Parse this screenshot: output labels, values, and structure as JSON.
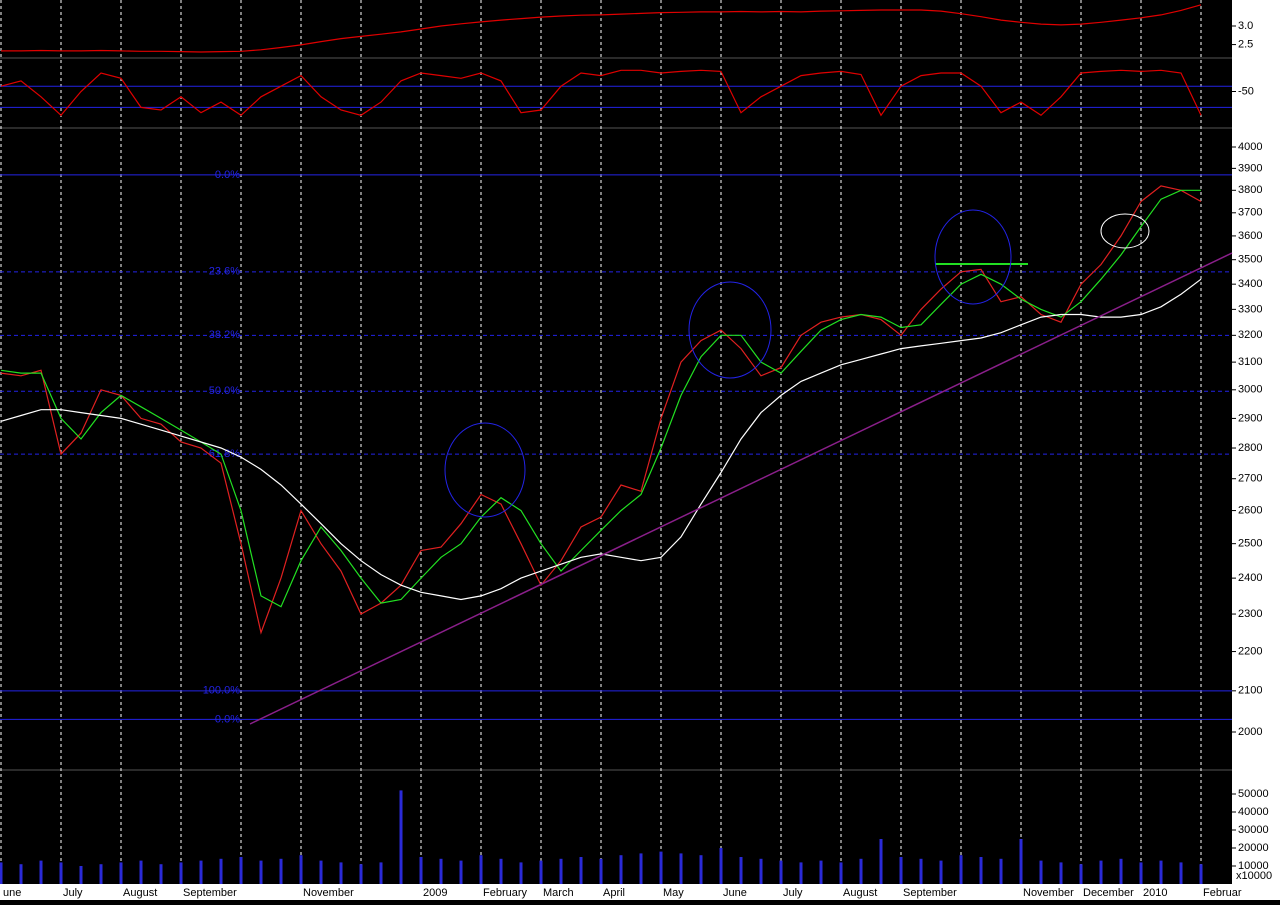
{
  "chart_data": [
    {
      "type": "line",
      "series": [
        {
          "color": "#e00000",
          "values": [
            2.33,
            2.33,
            2.34,
            2.33,
            2.33,
            2.34,
            2.33,
            2.32,
            2.32,
            2.31,
            2.3,
            2.31,
            2.32,
            2.36,
            2.42,
            2.49,
            2.58,
            2.66,
            2.72,
            2.78,
            2.84,
            2.92,
            3.0,
            3.06,
            3.11,
            3.16,
            3.2,
            3.24,
            3.27,
            3.29,
            3.3,
            3.32,
            3.34,
            3.36,
            3.37,
            3.38,
            3.38,
            3.39,
            3.38,
            3.39,
            3.38,
            3.4,
            3.41,
            3.42,
            3.43,
            3.43,
            3.43,
            3.4,
            3.33,
            3.25,
            3.16,
            3.1,
            3.05,
            3.03,
            3.05,
            3.1,
            3.16,
            3.22,
            3.3,
            3.42,
            3.57
          ]
        }
      ],
      "ylim": [
        2.3,
        3.7
      ],
      "yticks": [
        2.5,
        {
          "value": 3,
          "label": "3.0"
        }
      ]
    },
    {
      "type": "line",
      "series": [
        {
          "color": "#e00000",
          "values": [
            -40,
            -30,
            -60,
            -95,
            -50,
            -15,
            -25,
            -80,
            -85,
            -60,
            -90,
            -70,
            -95,
            -60,
            -40,
            -20,
            -60,
            -85,
            -95,
            -70,
            -30,
            -15,
            -20,
            -25,
            -15,
            -30,
            -90,
            -85,
            -40,
            -15,
            -20,
            -10,
            -10,
            -15,
            -12,
            -10,
            -12,
            -90,
            -60,
            -40,
            -20,
            -15,
            -12,
            -18,
            -95,
            -40,
            -20,
            -15,
            -15,
            -40,
            -90,
            -70,
            -95,
            -60,
            -15,
            -12,
            -10,
            -12,
            -10,
            -15,
            -95
          ]
        }
      ],
      "ylim": [
        -100,
        0
      ],
      "yticks": [
        -50
      ],
      "levels": [
        -40,
        -80
      ],
      "level_color": "#2323e6"
    },
    {
      "type": "line",
      "log": true,
      "series": [
        {
          "color": "#e02020",
          "values": [
            3060,
            3050,
            3070,
            2780,
            2850,
            3000,
            2980,
            2900,
            2880,
            2820,
            2800,
            2750,
            2500,
            2250,
            2400,
            2600,
            2500,
            2420,
            2300,
            2330,
            2380,
            2480,
            2490,
            2560,
            2650,
            2620,
            2500,
            2380,
            2450,
            2550,
            2580,
            2680,
            2660,
            2900,
            3100,
            3180,
            3220,
            3150,
            3050,
            3080,
            3200,
            3250,
            3270,
            3280,
            3260,
            3200,
            3300,
            3380,
            3450,
            3460,
            3330,
            3350,
            3280,
            3250,
            3400,
            3480,
            3600,
            3750,
            3820,
            3800,
            3750
          ]
        },
        {
          "color": "#22e022",
          "values": [
            3070,
            3060,
            3060,
            2900,
            2830,
            2920,
            2980,
            2940,
            2900,
            2860,
            2820,
            2780,
            2600,
            2350,
            2320,
            2450,
            2550,
            2480,
            2400,
            2330,
            2340,
            2400,
            2460,
            2500,
            2580,
            2640,
            2600,
            2500,
            2420,
            2480,
            2540,
            2600,
            2650,
            2800,
            2980,
            3120,
            3200,
            3200,
            3100,
            3060,
            3140,
            3220,
            3260,
            3280,
            3270,
            3230,
            3240,
            3320,
            3400,
            3440,
            3400,
            3340,
            3300,
            3270,
            3330,
            3420,
            3520,
            3640,
            3760,
            3800,
            3800
          ]
        },
        {
          "color": "#ffffff",
          "values": [
            2890,
            2910,
            2930,
            2930,
            2920,
            2910,
            2900,
            2880,
            2860,
            2840,
            2820,
            2800,
            2770,
            2730,
            2680,
            2620,
            2560,
            2500,
            2450,
            2410,
            2380,
            2360,
            2350,
            2340,
            2350,
            2370,
            2400,
            2420,
            2440,
            2460,
            2470,
            2460,
            2450,
            2460,
            2520,
            2620,
            2720,
            2830,
            2920,
            2980,
            3030,
            3060,
            3090,
            3110,
            3130,
            3150,
            3160,
            3170,
            3180,
            3190,
            3210,
            3240,
            3270,
            3280,
            3280,
            3270,
            3270,
            3280,
            3310,
            3360,
            3420
          ]
        }
      ],
      "ylim": [
        2000,
        4000
      ],
      "yticks": [
        2000,
        2100,
        2200,
        2300,
        2400,
        2500,
        2600,
        2700,
        2800,
        2900,
        3000,
        3100,
        3200,
        3300,
        3400,
        3500,
        3600,
        3700,
        3800,
        3900,
        4000
      ],
      "fib_color": "#2323e6",
      "fib_levels": [
        {
          "value": 3870,
          "label": "0.0%",
          "style": "solid"
        },
        {
          "value": 3450,
          "label": "23.6%",
          "style": "dashed"
        },
        {
          "value": 3200,
          "label": "38.2%",
          "style": "dashed"
        },
        {
          "value": 2995,
          "label": "50.0%",
          "style": "dashed"
        },
        {
          "value": 2780,
          "label": "61.8%",
          "style": "dashed"
        },
        {
          "value": 2100,
          "label": "100.0%",
          "style": "solid"
        },
        {
          "value": 2030,
          "label": "0.0%",
          "style": "solid"
        }
      ]
    },
    {
      "type": "bar",
      "color": "#2a2ad8",
      "categories": [
        "une",
        null,
        null,
        "July",
        null,
        null,
        "August",
        null,
        null,
        "September",
        null,
        null,
        null,
        null,
        null,
        "November",
        null,
        null,
        null,
        null,
        null,
        "2009",
        null,
        null,
        "February",
        null,
        null,
        "March",
        null,
        null,
        "April",
        null,
        null,
        "May",
        null,
        null,
        "June",
        null,
        null,
        "July",
        null,
        null,
        "August",
        null,
        null,
        "September",
        null,
        null,
        null,
        null,
        null,
        "November",
        null,
        null,
        "December",
        null,
        null,
        "2010",
        null,
        null,
        "Februar"
      ],
      "values": [
        12000,
        11000,
        13000,
        12000,
        10000,
        11000,
        12000,
        13000,
        11000,
        12000,
        13000,
        14000,
        15000,
        13000,
        14000,
        16000,
        13000,
        12000,
        11000,
        12000,
        52000,
        15000,
        14000,
        13000,
        16000,
        14000,
        12000,
        13000,
        14000,
        15000,
        14000,
        16000,
        17000,
        18000,
        17000,
        16000,
        20000,
        15000,
        14000,
        13000,
        12000,
        13000,
        12000,
        14000,
        25000,
        15000,
        14000,
        13000,
        16000,
        15000,
        14000,
        25000,
        13000,
        12000,
        11000,
        13000,
        14000,
        12000,
        13000,
        12000,
        11000
      ],
      "ylim": [
        0,
        60000
      ],
      "yticks": [
        10000,
        20000,
        30000,
        40000,
        50000
      ],
      "unit_label": "x10000"
    }
  ]
}
